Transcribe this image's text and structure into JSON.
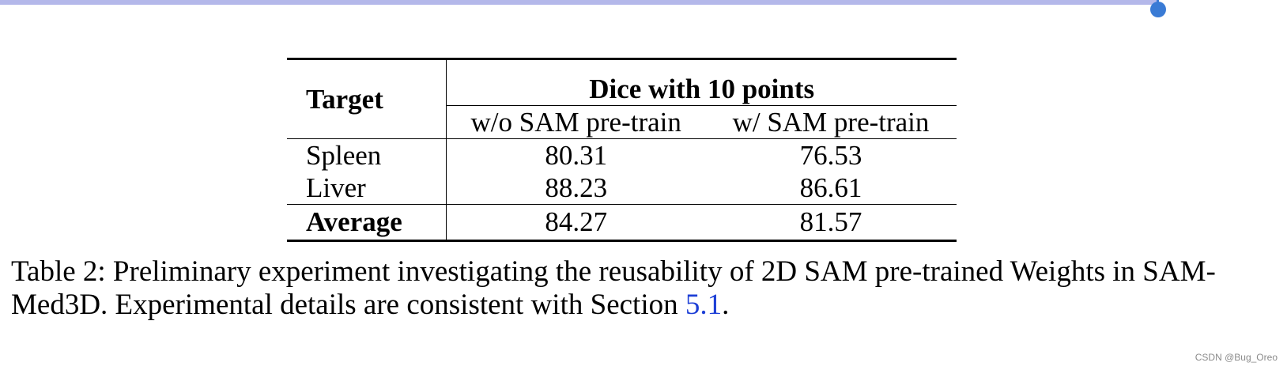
{
  "table": {
    "header": {
      "target_label": "Target",
      "group_label": "Dice with 10 points",
      "columns": [
        "w/o SAM pre-train",
        "w/ SAM pre-train"
      ]
    },
    "rows": [
      {
        "target": "Spleen",
        "values": [
          "80.31",
          "76.53"
        ]
      },
      {
        "target": "Liver",
        "values": [
          "88.23",
          "86.61"
        ]
      }
    ],
    "average": {
      "target": "Average",
      "values": [
        "84.27",
        "81.57"
      ]
    }
  },
  "caption": {
    "text_before_link": "Table 2: Preliminary experiment investigating the reusability of 2D SAM pre-trained Weights in SAM-Med3D. Experimental details are consistent with Section ",
    "link_text": "5.1",
    "text_after_link": "."
  },
  "watermark": "CSDN @Bug_Oreo",
  "colors": {
    "selection_highlight": "#b4b8ea",
    "selection_handle": "#3a7bd5",
    "link": "#1d3fd6"
  }
}
